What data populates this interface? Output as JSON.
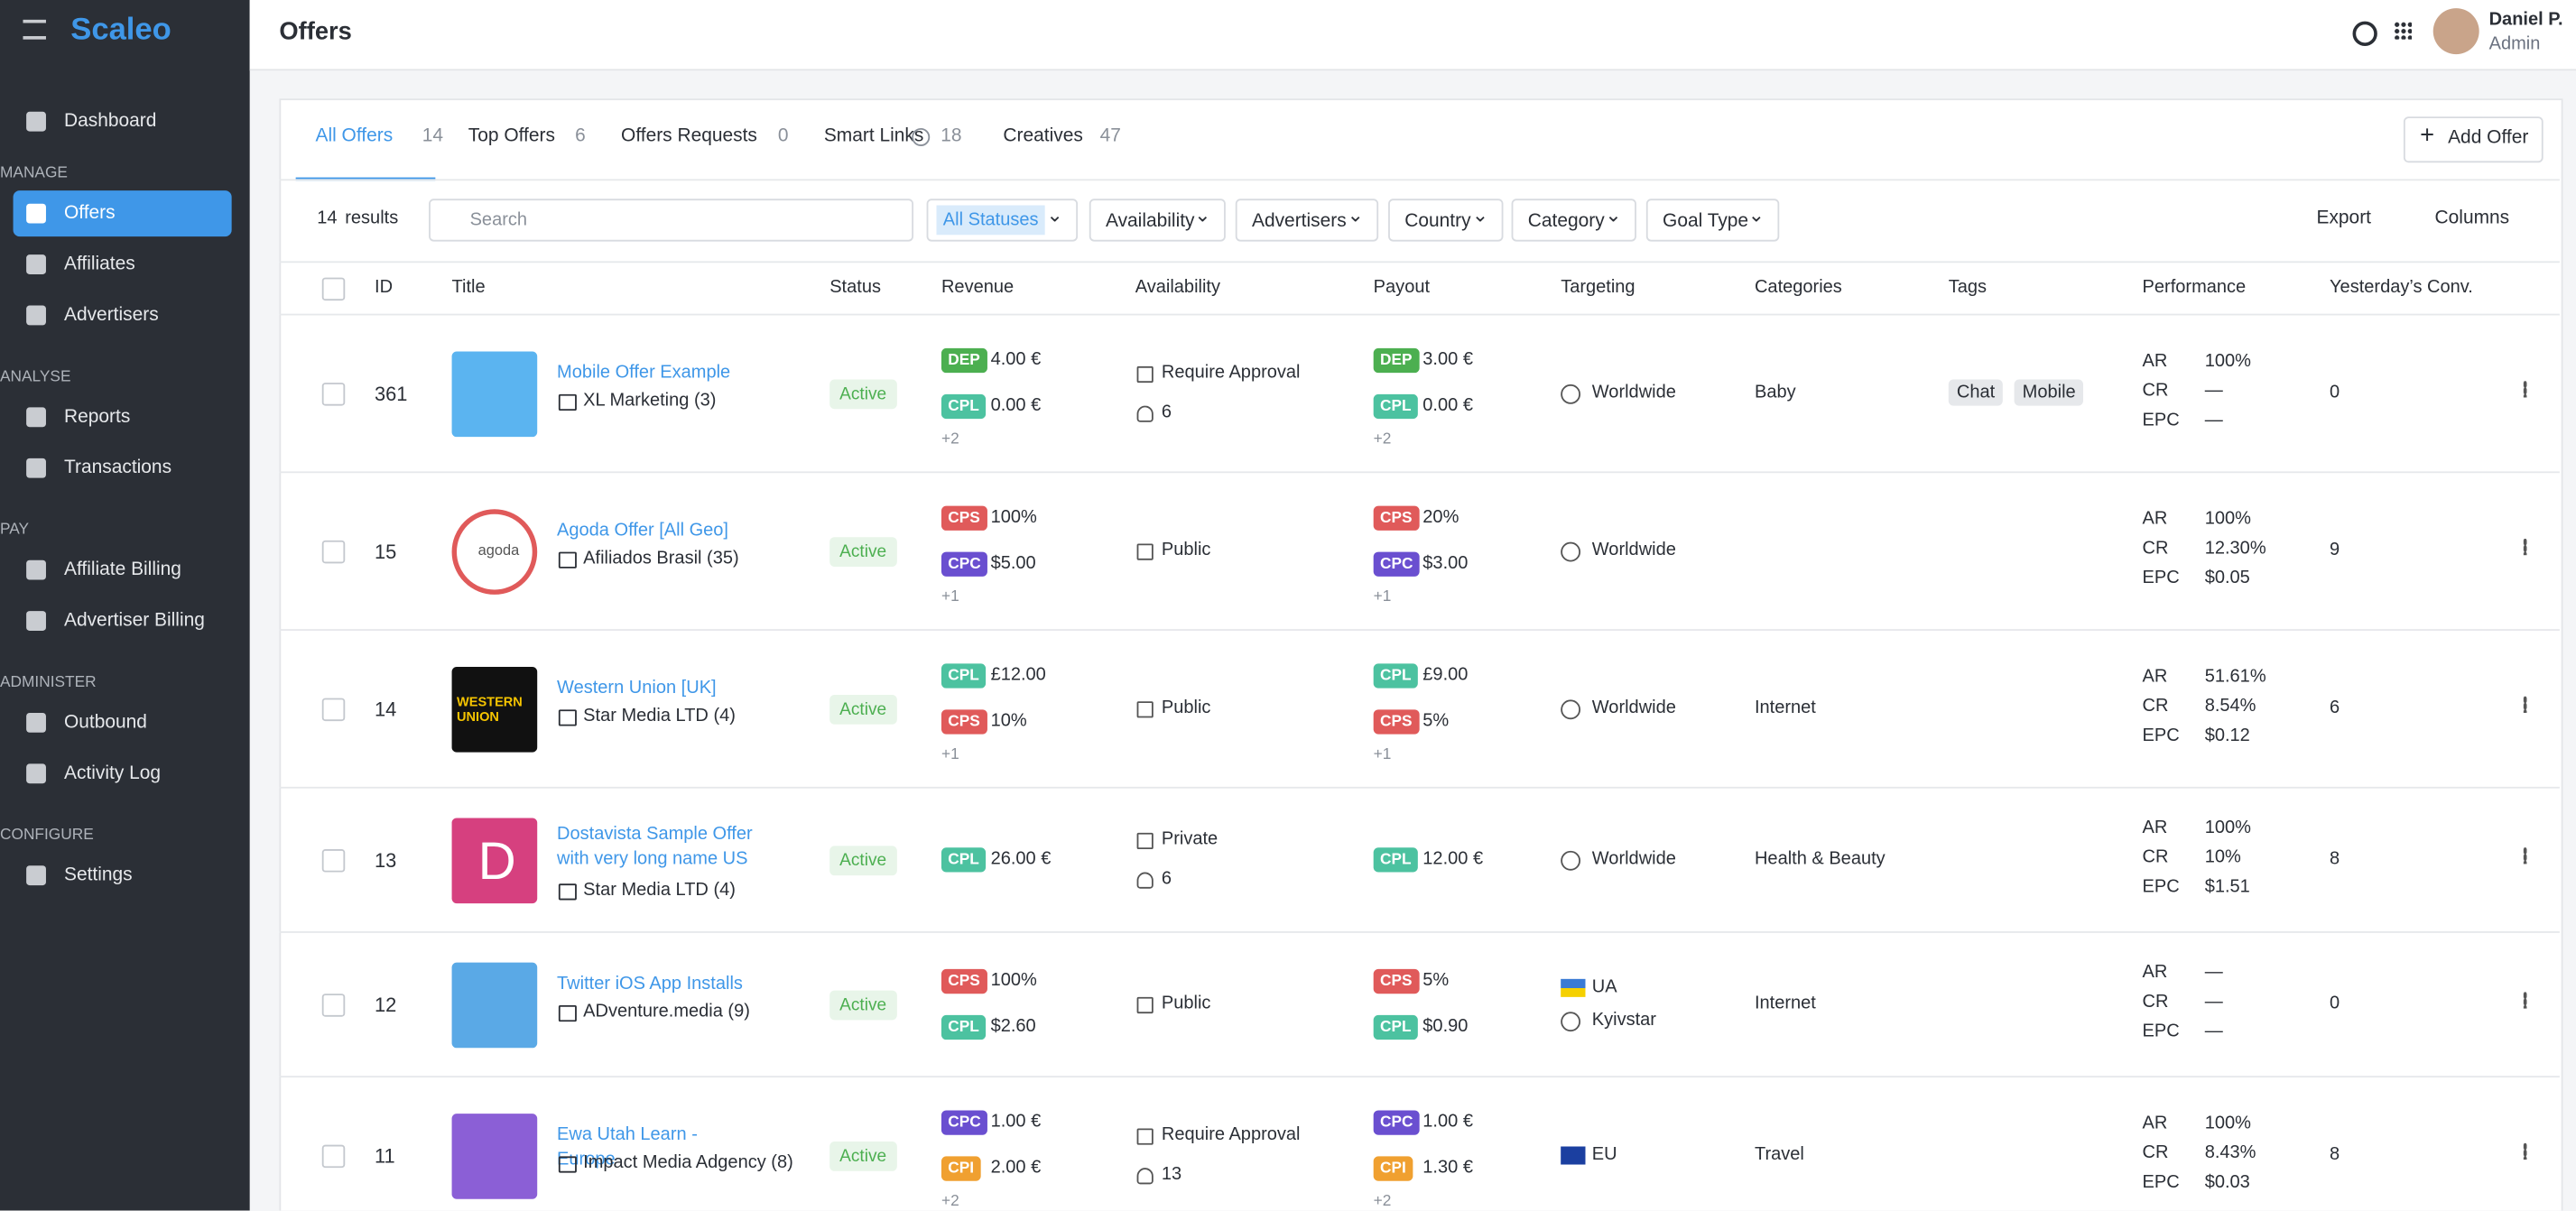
{
  "sidebar": {
    "brand": "Scaleo",
    "top": [
      "Dashboard"
    ],
    "groups": [
      {
        "heading": "MANAGE",
        "items": [
          "Offers",
          "Affiliates",
          "Advertisers"
        ]
      },
      {
        "heading": "ANALYSE",
        "items": [
          "Reports",
          "Transactions"
        ]
      },
      {
        "heading": "PAY",
        "items": [
          "Affiliate Billing",
          "Advertiser Billing"
        ]
      },
      {
        "heading": "ADMINISTER",
        "items": [
          "Outbound",
          "Activity Log"
        ]
      },
      {
        "heading": "CONFIGURE",
        "items": [
          "Settings"
        ]
      }
    ]
  },
  "header": {
    "title": "Offers",
    "user_name": "Daniel P.",
    "user_role": "Admin"
  },
  "tabs": [
    {
      "label": "All Offers",
      "count": 14
    },
    {
      "label": "Top Offers",
      "count": 6
    },
    {
      "label": "Offers Requests",
      "count": 0
    },
    {
      "label": "Smart Links",
      "count": 18
    },
    {
      "label": "Creatives",
      "count": 47
    }
  ],
  "add_button": "Add Offer",
  "results": {
    "count": 14,
    "label": "results"
  },
  "search_placeholder": "Search",
  "filters": [
    "All Statuses",
    "Availability",
    "Advertisers",
    "Country",
    "Category",
    "Goal Type"
  ],
  "actions": [
    "Export",
    "Columns"
  ],
  "columns": [
    "ID",
    "Title",
    "Status",
    "Revenue",
    "Availability",
    "Payout",
    "Targeting",
    "Categories",
    "Tags",
    "Performance",
    "Yesterday’s Conv."
  ],
  "performance_labels": [
    "AR",
    "CR",
    "EPC"
  ],
  "rows": [
    {
      "id": "361",
      "title": "Mobile Offer Example",
      "advertiser": "XL Marketing (3)",
      "status": "Active",
      "revenue": [
        {
          "badge": "DEP",
          "value": "4.00 €"
        },
        {
          "badge": "CPL",
          "value": "0.00 €"
        }
      ],
      "revenue_more": "+2",
      "availability": [
        "Require Approval",
        "6"
      ],
      "payout": [
        {
          "badge": "DEP",
          "value": "3.00 €"
        },
        {
          "badge": "CPL",
          "value": "0.00 €"
        }
      ],
      "payout_more": "+2",
      "targeting": [
        "Worldwide"
      ],
      "category": "Baby",
      "tags": [
        "Chat",
        "Mobile"
      ],
      "performance": [
        "100%",
        "—",
        "—"
      ],
      "yesterday": "0"
    },
    {
      "id": "15",
      "title": "Agoda Offer [All Geo]",
      "thumb_text": "agoda",
      "advertiser": "Afiliados Brasil (35)",
      "status": "Active",
      "revenue": [
        {
          "badge": "CPS",
          "value": "100%"
        },
        {
          "badge": "CPC",
          "value": "$5.00"
        }
      ],
      "revenue_more": "+1",
      "availability": [
        "Public"
      ],
      "payout": [
        {
          "badge": "CPS",
          "value": "20%"
        },
        {
          "badge": "CPC",
          "value": "$3.00"
        }
      ],
      "payout_more": "+1",
      "targeting": [
        "Worldwide"
      ],
      "tags": [],
      "performance": [
        "100%",
        "12.30%",
        "$0.05"
      ],
      "yesterday": "9"
    },
    {
      "id": "14",
      "title": "Western Union [UK]",
      "thumb_text": "WESTERN UNION",
      "advertiser": "Star Media LTD (4)",
      "status": "Active",
      "revenue": [
        {
          "badge": "CPL",
          "value": "£12.00"
        },
        {
          "badge": "CPS",
          "value": "10%"
        }
      ],
      "revenue_more": "+1",
      "availability": [
        "Public"
      ],
      "payout": [
        {
          "badge": "CPL",
          "value": "£9.00"
        },
        {
          "badge": "CPS",
          "value": "5%"
        }
      ],
      "payout_more": "+1",
      "targeting": [
        "Worldwide"
      ],
      "category": "Internet",
      "tags": [],
      "performance": [
        "51.61%",
        "8.54%",
        "$0.12"
      ],
      "yesterday": "6"
    },
    {
      "id": "13",
      "title": "Dostavista Sample Offer with very long name US",
      "thumb_text": "D",
      "advertiser": "Star Media LTD (4)",
      "status": "Active",
      "revenue": [
        {
          "badge": "CPL",
          "value": "26.00 €"
        }
      ],
      "availability": [
        "Private",
        "6"
      ],
      "payout": [
        {
          "badge": "CPL",
          "value": "12.00 €"
        }
      ],
      "targeting": [
        "Worldwide"
      ],
      "category": "Health & Beauty",
      "tags": [],
      "performance": [
        "100%",
        "10%",
        "$1.51"
      ],
      "yesterday": "8"
    },
    {
      "id": "12",
      "title": "Twitter iOS App Installs",
      "advertiser": "ADventure.media (9)",
      "status": "Active",
      "revenue": [
        {
          "badge": "CPS",
          "value": "100%"
        },
        {
          "badge": "CPL",
          "value": "$2.60"
        }
      ],
      "availability": [
        "Public"
      ],
      "payout": [
        {
          "badge": "CPS",
          "value": "5%"
        },
        {
          "badge": "CPL",
          "value": "$0.90"
        }
      ],
      "targeting": [
        "UA",
        "Kyivstar"
      ],
      "category": "Internet",
      "tags": [],
      "performance": [
        "—",
        "—",
        "—"
      ],
      "yesterday": "0"
    },
    {
      "id": "11",
      "title": "Ewa Utah Learn - Europe",
      "advertiser": "Impact Media Adgency (8)",
      "status": "Active",
      "revenue": [
        {
          "badge": "CPC",
          "value": "1.00 €"
        },
        {
          "badge": "CPI",
          "value": "2.00 €"
        }
      ],
      "revenue_more": "+2",
      "availability": [
        "Require Approval",
        "13"
      ],
      "payout": [
        {
          "badge": "CPC",
          "value": "1.00 €"
        },
        {
          "badge": "CPI",
          "value": "1.30 €"
        }
      ],
      "payout_more": "+2",
      "targeting": [
        "EU"
      ],
      "category": "Travel",
      "tags": [],
      "performance": [
        "100%",
        "8.43%",
        "$0.03"
      ],
      "yesterday": "8"
    }
  ]
}
